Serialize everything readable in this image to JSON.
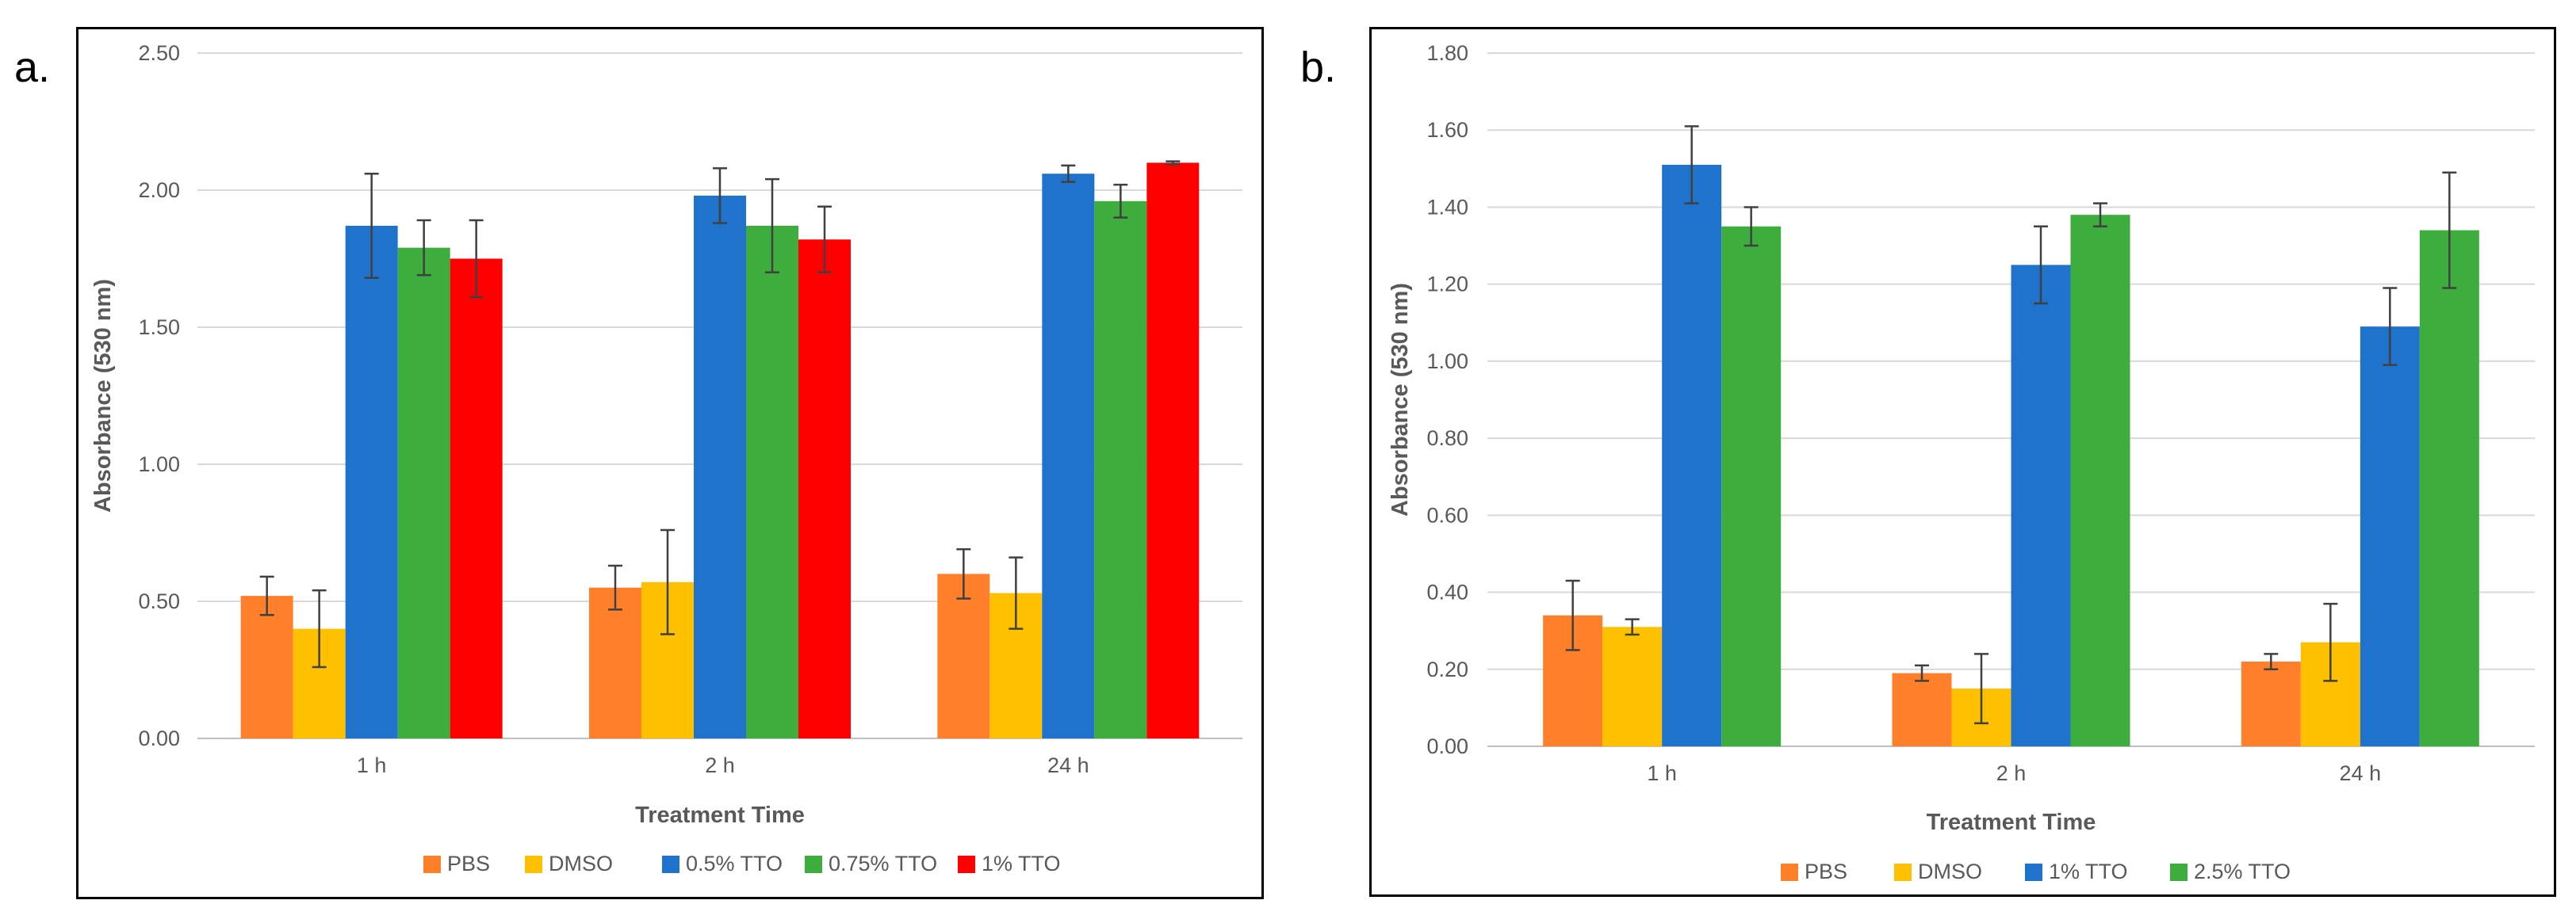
{
  "panels": {
    "a": {
      "label": "a."
    },
    "b": {
      "label": "b."
    }
  },
  "colors": {
    "PBS": "#FF7F2A",
    "DMSO": "#FFC000",
    "0.5% TTO": "#1F73CC",
    "1% TTO (a)": "#FF0000",
    "0.75% TTO": "#3DAE3D",
    "1% TTO (b)": "#1F73CC",
    "2.5% TTO": "#3DAE3D",
    "grid": "#D9D9D9",
    "axis": "#BFBFBF",
    "error": "#404040"
  },
  "chart_data": [
    {
      "type": "bar",
      "title": "",
      "xlabel": "Treatment Time",
      "ylabel": "Absorbance (530 nm)",
      "ylim": [
        0,
        2.5
      ],
      "yticks": [
        "0.00",
        "0.50",
        "1.00",
        "1.50",
        "2.00",
        "2.50"
      ],
      "grid": true,
      "legend_position": "bottom",
      "categories": [
        "1 h",
        "2 h",
        "24 h"
      ],
      "series": [
        {
          "name": "PBS",
          "color": "#FF7F2A",
          "values": [
            0.52,
            0.55,
            0.6
          ],
          "errors": [
            0.07,
            0.08,
            0.09
          ]
        },
        {
          "name": "DMSO",
          "color": "#FFC000",
          "values": [
            0.4,
            0.57,
            0.53
          ],
          "errors": [
            0.14,
            0.19,
            0.13
          ]
        },
        {
          "name": "0.5% TTO",
          "color": "#1F73CC",
          "values": [
            1.87,
            1.98,
            2.06
          ],
          "errors": [
            0.19,
            0.1,
            0.03
          ]
        },
        {
          "name": "0.75% TTO",
          "color": "#3DAE3D",
          "values": [
            1.79,
            1.87,
            1.96
          ],
          "errors": [
            0.1,
            0.17,
            0.06
          ]
        },
        {
          "name": "1% TTO",
          "color": "#FF0000",
          "values": [
            1.75,
            1.82,
            2.1
          ],
          "errors": [
            0.14,
            0.12,
            0.005
          ]
        }
      ]
    },
    {
      "type": "bar",
      "title": "",
      "xlabel": "Treatment Time",
      "ylabel": "Absorbance (530 nm)",
      "ylim": [
        0,
        1.8
      ],
      "yticks": [
        "0.00",
        "0.20",
        "0.40",
        "0.60",
        "0.80",
        "1.00",
        "1.20",
        "1.40",
        "1.60",
        "1.80"
      ],
      "grid": true,
      "legend_position": "bottom",
      "categories": [
        "1 h",
        "2 h",
        "24 h"
      ],
      "series": [
        {
          "name": "PBS",
          "color": "#FF7F2A",
          "values": [
            0.34,
            0.19,
            0.22
          ],
          "errors": [
            0.09,
            0.02,
            0.02
          ]
        },
        {
          "name": "DMSO",
          "color": "#FFC000",
          "values": [
            0.31,
            0.15,
            0.27
          ],
          "errors": [
            0.02,
            0.09,
            0.1
          ]
        },
        {
          "name": "1% TTO",
          "color": "#1F73CC",
          "values": [
            1.51,
            1.25,
            1.09
          ],
          "errors": [
            0.1,
            0.1,
            0.1
          ]
        },
        {
          "name": "2.5% TTO",
          "color": "#3DAE3D",
          "values": [
            1.35,
            1.38,
            1.34
          ],
          "errors": [
            0.05,
            0.03,
            0.15
          ]
        }
      ]
    }
  ]
}
